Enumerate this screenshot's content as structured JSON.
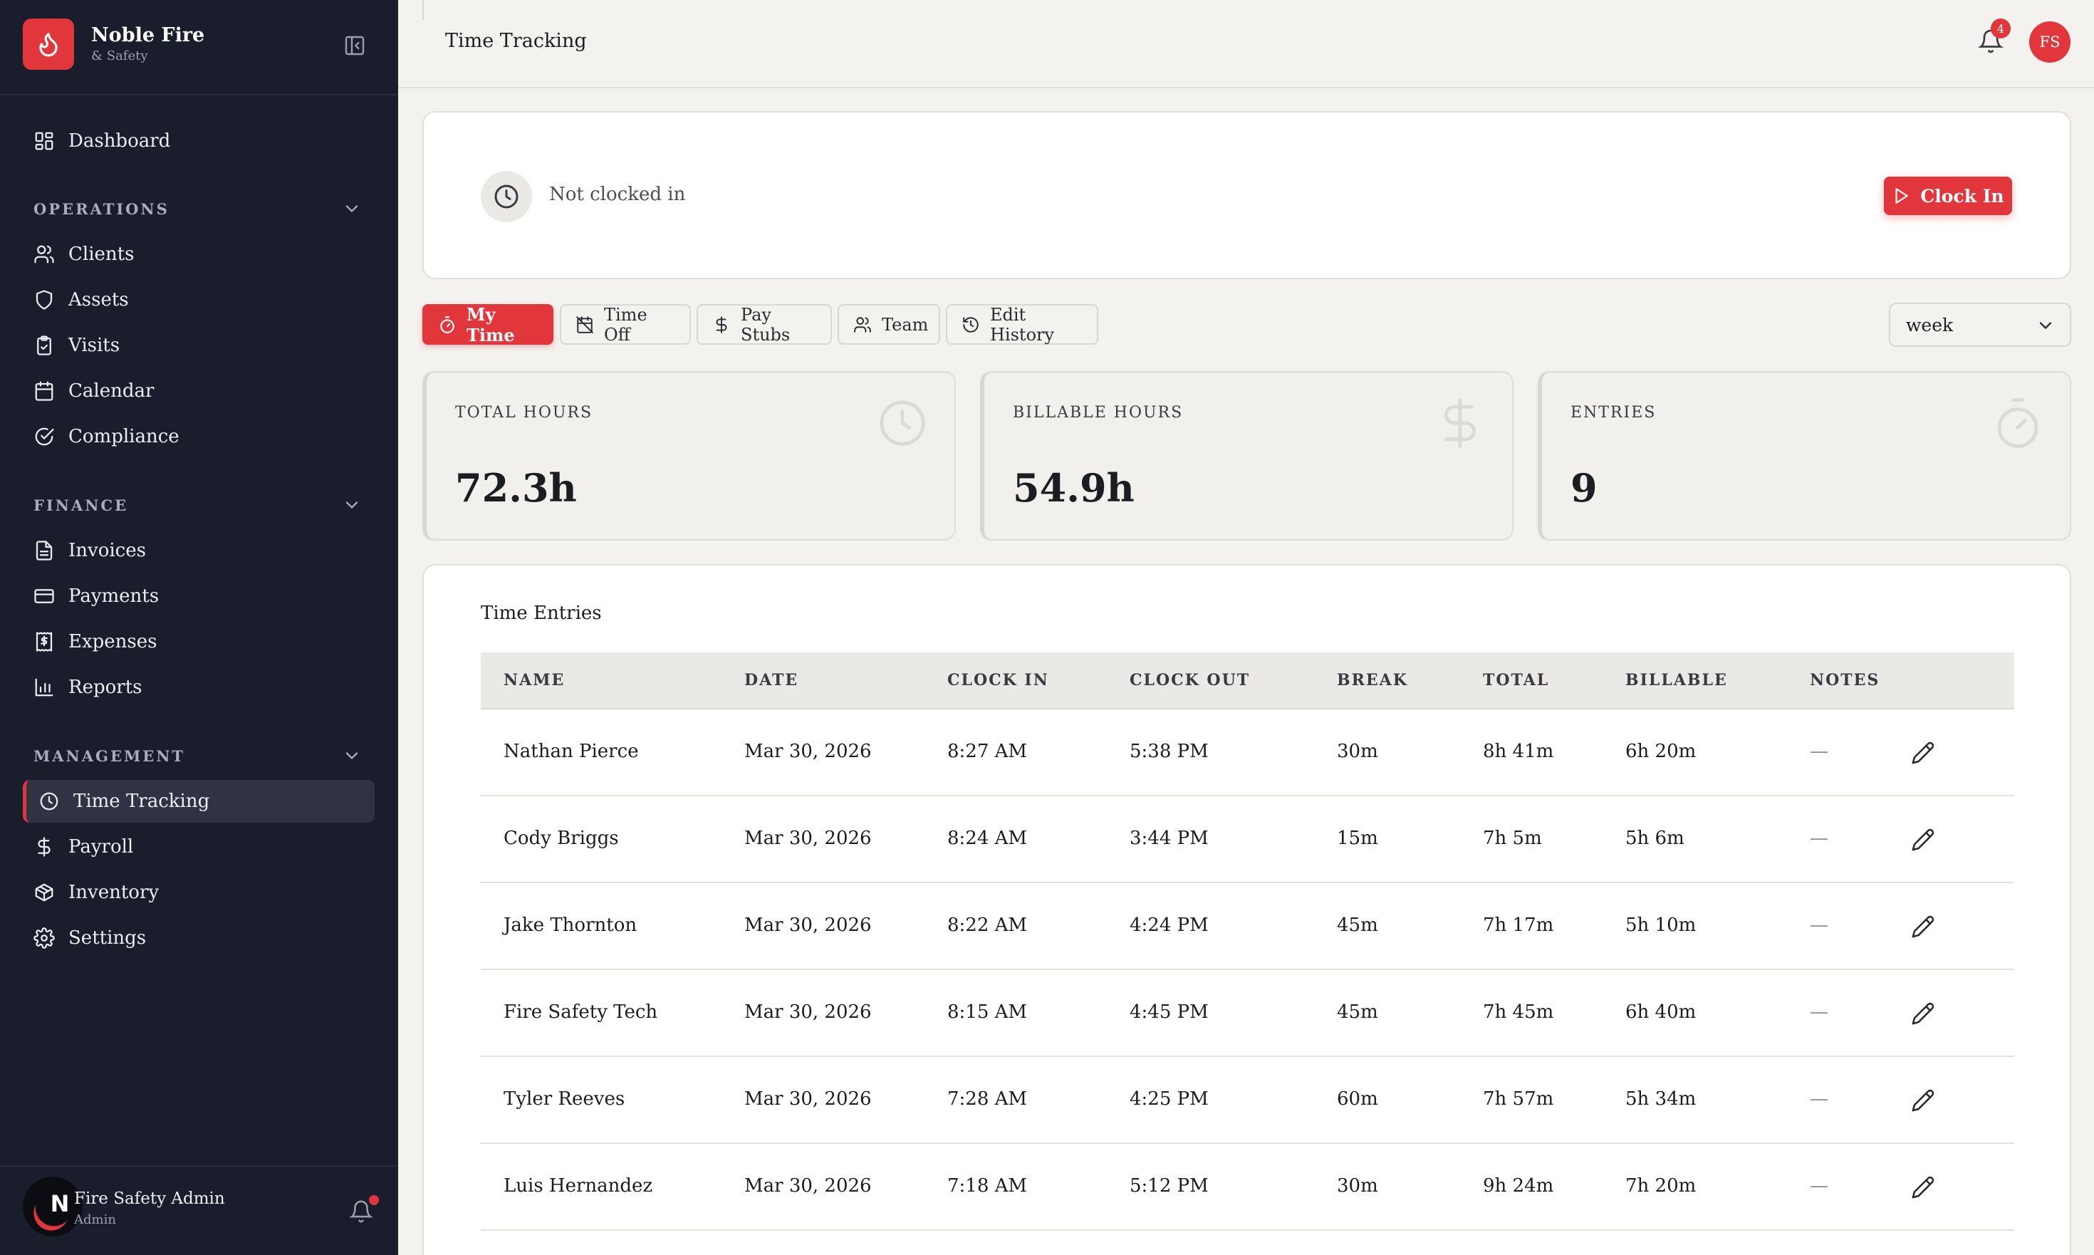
{
  "brand": {
    "name": "Noble Fire",
    "sub": "& Safety"
  },
  "sidebar": {
    "dashboard": "Dashboard",
    "sections": [
      {
        "label": "OPERATIONS",
        "items": [
          "Clients",
          "Assets",
          "Visits",
          "Calendar",
          "Compliance"
        ]
      },
      {
        "label": "FINANCE",
        "items": [
          "Invoices",
          "Payments",
          "Expenses",
          "Reports"
        ]
      },
      {
        "label": "MANAGEMENT",
        "items": [
          "Time Tracking",
          "Payroll",
          "Inventory",
          "Settings"
        ]
      }
    ],
    "active": "Time Tracking",
    "user": {
      "initial": "N",
      "name": "Fire Safety Admin",
      "role": "Admin"
    }
  },
  "header": {
    "title": "Time Tracking",
    "notifications": "4",
    "avatar": "FS"
  },
  "clock": {
    "status": "Not clocked in",
    "button": "Clock In"
  },
  "tabs": [
    "My Time",
    "Time Off",
    "Pay Stubs",
    "Team",
    "Edit History"
  ],
  "period": "week",
  "stats": [
    {
      "label": "TOTAL HOURS",
      "value": "72.3h"
    },
    {
      "label": "BILLABLE HOURS",
      "value": "54.9h"
    },
    {
      "label": "ENTRIES",
      "value": "9"
    }
  ],
  "entries": {
    "title": "Time Entries",
    "columns": [
      "NAME",
      "DATE",
      "CLOCK IN",
      "CLOCK OUT",
      "BREAK",
      "TOTAL",
      "BILLABLE",
      "NOTES"
    ],
    "rows": [
      [
        "Nathan Pierce",
        "Mar 30, 2026",
        "8:27 AM",
        "5:38 PM",
        "30m",
        "8h 41m",
        "6h 20m",
        "—"
      ],
      [
        "Cody Briggs",
        "Mar 30, 2026",
        "8:24 AM",
        "3:44 PM",
        "15m",
        "7h 5m",
        "5h 6m",
        "—"
      ],
      [
        "Jake Thornton",
        "Mar 30, 2026",
        "8:22 AM",
        "4:24 PM",
        "45m",
        "7h 17m",
        "5h 10m",
        "—"
      ],
      [
        "Fire Safety Tech",
        "Mar 30, 2026",
        "8:15 AM",
        "4:45 PM",
        "45m",
        "7h 45m",
        "6h 40m",
        "—"
      ],
      [
        "Tyler Reeves",
        "Mar 30, 2026",
        "7:28 AM",
        "4:25 PM",
        "60m",
        "7h 57m",
        "5h 34m",
        "—"
      ],
      [
        "Luis Hernandez",
        "Mar 30, 2026",
        "7:18 AM",
        "5:12 PM",
        "30m",
        "9h 24m",
        "7h 20m",
        "—"
      ]
    ]
  },
  "colors": {
    "accent": "#e0363c",
    "sidebar": "#1a1d2b",
    "background": "#f3f2ef"
  }
}
